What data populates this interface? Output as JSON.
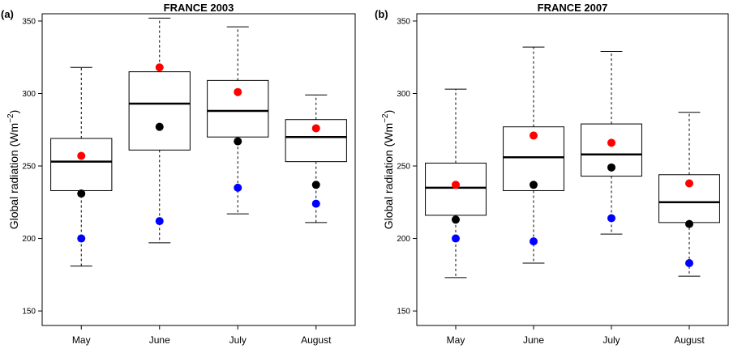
{
  "chart_data": [
    {
      "type": "boxplot",
      "panel_label": "(a)",
      "title": "FRANCE 2003",
      "ylabel": "Global radiation (Wm",
      "ylabel_sup": "−2",
      "ylabel_close": ")",
      "ylim": [
        140,
        355
      ],
      "yticks": [
        150,
        200,
        250,
        300,
        350
      ],
      "categories": [
        "May",
        "June",
        "July",
        "August"
      ],
      "boxes": [
        {
          "whisker_low": 181,
          "q1": 233,
          "median": 253,
          "q3": 269,
          "whisker_high": 318
        },
        {
          "whisker_low": 197,
          "q1": 261,
          "median": 293,
          "q3": 315,
          "whisker_high": 352
        },
        {
          "whisker_low": 217,
          "q1": 270,
          "median": 288,
          "q3": 309,
          "whisker_high": 346
        },
        {
          "whisker_low": 211,
          "q1": 253,
          "median": 270,
          "q3": 282,
          "whisker_high": 299
        }
      ],
      "points": [
        {
          "color": "#ff0000",
          "values": [
            257,
            318,
            301,
            276
          ]
        },
        {
          "color": "#000000",
          "values": [
            231,
            277,
            267,
            237
          ]
        },
        {
          "color": "#0000ff",
          "values": [
            200,
            212,
            235,
            224
          ]
        }
      ]
    },
    {
      "type": "boxplot",
      "panel_label": "(b)",
      "title": "FRANCE 2007",
      "ylabel": "Global radiation (Wm",
      "ylabel_sup": "−2",
      "ylabel_close": ")",
      "ylim": [
        140,
        355
      ],
      "yticks": [
        150,
        200,
        250,
        300,
        350
      ],
      "categories": [
        "May",
        "June",
        "July",
        "August"
      ],
      "boxes": [
        {
          "whisker_low": 173,
          "q1": 216,
          "median": 235,
          "q3": 252,
          "whisker_high": 303
        },
        {
          "whisker_low": 183,
          "q1": 233,
          "median": 256,
          "q3": 277,
          "whisker_high": 332
        },
        {
          "whisker_low": 203,
          "q1": 243,
          "median": 258,
          "q3": 279,
          "whisker_high": 329
        },
        {
          "whisker_low": 174,
          "q1": 211,
          "median": 225,
          "q3": 244,
          "whisker_high": 287
        }
      ],
      "points": [
        {
          "color": "#ff0000",
          "values": [
            237,
            271,
            266,
            238
          ]
        },
        {
          "color": "#000000",
          "values": [
            213,
            237,
            249,
            210
          ]
        },
        {
          "color": "#0000ff",
          "values": [
            200,
            198,
            214,
            183
          ]
        }
      ]
    }
  ]
}
